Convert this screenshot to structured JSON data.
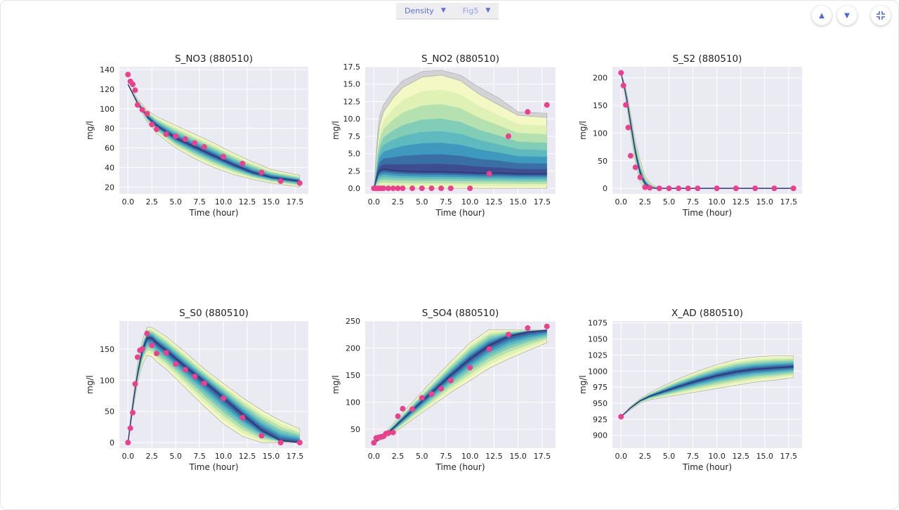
{
  "toolbar": {
    "dropdown1": "Density",
    "dropdown2": "Fig5",
    "icons": [
      "chevron-up-icon",
      "chevron-down-icon",
      "collapse-icon"
    ]
  },
  "colors": {
    "background": "#eaeaf2",
    "grid": "#ffffff",
    "observed": "#e8428f",
    "band_outer": "#f4f8c4",
    "band_mid": "#5fbac0",
    "band_inner": "#3d4d90",
    "envelope": "#a9a9a9",
    "accent": "#5b6ee1"
  },
  "chart_data": [
    {
      "type": "area",
      "title": "S_NO3 (880510)",
      "xlabel": "Time (hour)",
      "ylabel": "mg/l",
      "xlim": [
        -0.9,
        18.9
      ],
      "ylim": [
        13,
        143
      ],
      "xticks": [
        "0.0",
        "2.5",
        "5.0",
        "7.5",
        "10.0",
        "12.5",
        "15.0",
        "17.5"
      ],
      "yticks": [
        "20",
        "40",
        "60",
        "80",
        "100",
        "120",
        "140"
      ],
      "grid": true,
      "band": {
        "x": [
          0,
          1,
          2,
          3,
          5,
          7,
          9,
          11,
          13,
          15,
          18
        ],
        "lower": [
          125,
          104,
          87,
          75,
          60,
          49,
          40,
          33,
          28,
          24,
          20
        ],
        "upper": [
          125,
          110,
          99,
          92,
          83,
          74,
          65,
          55,
          46,
          38,
          32
        ],
        "mid": [
          125,
          106,
          92,
          83,
          70,
          61,
          52,
          43,
          35,
          30,
          26
        ]
      },
      "observed": {
        "x": [
          0,
          0.25,
          0.5,
          0.75,
          1,
          1.5,
          2,
          2.5,
          3,
          4,
          5,
          6,
          7,
          8,
          10,
          12,
          14,
          16,
          18
        ],
        "y": [
          135,
          128,
          125,
          119,
          104,
          99,
          95,
          84,
          79,
          74,
          72,
          69,
          65,
          61,
          51,
          44,
          35,
          26,
          24
        ]
      }
    },
    {
      "type": "area",
      "title": "S_NO2 (880510)",
      "xlabel": "Time (hour)",
      "ylabel": "mg/l",
      "xlim": [
        -0.9,
        18.9
      ],
      "ylim": [
        -0.8,
        17.5
      ],
      "xticks": [
        "0.0",
        "2.5",
        "5.0",
        "7.5",
        "10.0",
        "12.5",
        "15.0",
        "17.5"
      ],
      "yticks": [
        "0.0",
        "2.5",
        "5.0",
        "7.5",
        "10.0",
        "12.5",
        "15.0",
        "17.5"
      ],
      "grid": true,
      "band": {
        "x": [
          0,
          0.5,
          1,
          2,
          3,
          5,
          7,
          9,
          11,
          13,
          15,
          18
        ],
        "lower": [
          0,
          0,
          0,
          0,
          0,
          0,
          0,
          0,
          0,
          0,
          0,
          0
        ],
        "upper": [
          0,
          8.5,
          11,
          13,
          14.5,
          16,
          16.3,
          15.5,
          13.5,
          12,
          10.5,
          10.2
        ],
        "mid": [
          0,
          2.5,
          2.8,
          2.6,
          2.5,
          2.4,
          2.4,
          2.3,
          2.2,
          2.2,
          2.1,
          2.1
        ]
      },
      "envelope_upper": [
        0,
        10,
        12,
        14,
        15.5,
        16.8,
        17,
        16.3,
        14.5,
        13,
        11,
        10.8
      ],
      "observed": {
        "x": [
          0,
          0.25,
          0.5,
          0.75,
          1,
          1.5,
          2,
          2.5,
          3,
          4,
          5,
          6,
          7,
          8,
          10,
          12,
          14,
          16,
          18
        ],
        "y": [
          0,
          0,
          0,
          0,
          0,
          0,
          0,
          0,
          0,
          0,
          0,
          0,
          0,
          0,
          0,
          2.1,
          7.5,
          11,
          12
        ]
      }
    },
    {
      "type": "area",
      "title": "S_S2 (880510)",
      "xlabel": "Time (hour)",
      "ylabel": "mg/l",
      "xlim": [
        -0.9,
        18.9
      ],
      "ylim": [
        -10,
        220
      ],
      "xticks": [
        "0.0",
        "2.5",
        "5.0",
        "7.5",
        "10.0",
        "12.5",
        "15.0",
        "17.5"
      ],
      "yticks": [
        "0",
        "50",
        "100",
        "150",
        "200"
      ],
      "grid": true,
      "band": {
        "x": [
          0,
          0.5,
          1,
          1.5,
          2,
          2.5,
          3,
          3.5,
          4,
          4.5,
          18
        ],
        "lower": [
          208,
          160,
          100,
          45,
          12,
          0,
          0,
          0,
          0,
          0,
          0
        ],
        "upper": [
          208,
          182,
          135,
          85,
          50,
          22,
          10,
          4,
          1,
          0,
          0
        ],
        "mid": [
          208,
          172,
          118,
          65,
          28,
          8,
          2,
          0,
          0,
          0,
          0
        ]
      },
      "observed": {
        "x": [
          0,
          0.25,
          0.5,
          0.75,
          1,
          1.5,
          2,
          2.5,
          3,
          4,
          5,
          6,
          7,
          8,
          10,
          12,
          14,
          16,
          18
        ],
        "y": [
          209,
          186,
          151,
          110,
          59,
          38,
          20,
          2,
          1,
          0,
          0,
          0,
          0,
          0,
          0,
          0,
          0,
          0,
          0
        ]
      }
    },
    {
      "type": "area",
      "title": "S_S0 (880510)",
      "xlabel": "Time (hour)",
      "ylabel": "mg/l",
      "xlim": [
        -0.9,
        18.9
      ],
      "ylim": [
        -9,
        195
      ],
      "xticks": [
        "0.0",
        "2.5",
        "5.0",
        "7.5",
        "10.0",
        "12.5",
        "15.0",
        "17.5"
      ],
      "yticks": [
        "0",
        "50",
        "100",
        "150"
      ],
      "grid": true,
      "band": {
        "x": [
          0,
          0.5,
          1,
          1.5,
          2,
          2.5,
          3,
          4,
          6,
          8,
          10,
          12,
          14,
          16,
          18
        ],
        "lower": [
          0,
          50,
          95,
          125,
          140,
          138,
          130,
          118,
          88,
          58,
          30,
          10,
          0,
          0,
          0
        ],
        "upper": [
          0,
          70,
          125,
          165,
          185,
          185,
          180,
          170,
          145,
          118,
          95,
          72,
          52,
          35,
          22
        ],
        "mid": [
          0,
          60,
          110,
          148,
          168,
          168,
          160,
          148,
          122,
          98,
          72,
          45,
          20,
          3,
          0
        ]
      },
      "observed": {
        "x": [
          0,
          0.25,
          0.5,
          0.75,
          1,
          1.25,
          1.5,
          2,
          2.5,
          3,
          4,
          5,
          6,
          7,
          8,
          10,
          12,
          14,
          16,
          18
        ],
        "y": [
          0,
          23,
          48,
          94,
          137,
          148,
          150,
          175,
          156,
          143,
          144,
          126,
          117,
          106,
          95,
          71,
          40,
          11,
          0,
          0
        ]
      }
    },
    {
      "type": "area",
      "title": "S_SO4 (880510)",
      "xlabel": "Time (hour)",
      "ylabel": "mg/l",
      "xlim": [
        -0.9,
        18.9
      ],
      "ylim": [
        15,
        250
      ],
      "xticks": [
        "0.0",
        "2.5",
        "5.0",
        "7.5",
        "10.0",
        "12.5",
        "15.0",
        "17.5"
      ],
      "yticks": [
        "50",
        "100",
        "150",
        "200",
        "250"
      ],
      "grid": true,
      "band": {
        "x": [
          0,
          1,
          2,
          4,
          6,
          8,
          10,
          12,
          14,
          16,
          18
        ],
        "lower": [
          25,
          32,
          42,
          68,
          93,
          118,
          140,
          163,
          180,
          195,
          210
        ],
        "upper": [
          25,
          40,
          60,
          100,
          138,
          175,
          210,
          234,
          234,
          234,
          234
        ],
        "mid": [
          25,
          36,
          52,
          85,
          118,
          150,
          180,
          205,
          222,
          230,
          233
        ]
      },
      "observed": {
        "x": [
          0,
          0.25,
          0.5,
          0.75,
          1,
          1.25,
          1.5,
          2,
          2.5,
          3,
          4,
          5,
          6,
          7,
          8,
          10,
          12,
          14,
          16,
          18
        ],
        "y": [
          25,
          34,
          35,
          36,
          37,
          42,
          43,
          44,
          74,
          88,
          87,
          108,
          115,
          125,
          140,
          164,
          198,
          225,
          237,
          240
        ]
      }
    },
    {
      "type": "area",
      "title": "X_AD (880510)",
      "xlabel": "Time (hour)",
      "ylabel": "mg/l",
      "xlim": [
        -0.9,
        18.9
      ],
      "ylim": [
        880,
        1078
      ],
      "xticks": [
        "0.0",
        "2.5",
        "5.0",
        "7.5",
        "10.0",
        "12.5",
        "15.0",
        "17.5"
      ],
      "yticks": [
        "900",
        "925",
        "950",
        "975",
        "1000",
        "1025",
        "1050",
        "1075"
      ],
      "grid": true,
      "band": {
        "x": [
          0,
          1,
          2,
          3,
          4,
          6,
          8,
          10,
          12,
          14,
          16,
          18
        ],
        "lower": [
          929,
          940,
          950,
          955,
          958,
          963,
          968,
          973,
          978,
          983,
          986,
          990
        ],
        "upper": [
          929,
          945,
          957,
          966,
          974,
          988,
          1000,
          1010,
          1018,
          1022,
          1024,
          1024
        ],
        "mid": [
          929,
          943,
          954,
          961,
          966,
          976,
          985,
          993,
          999,
          1003,
          1005,
          1007
        ]
      },
      "observed": {
        "x": [
          0
        ],
        "y": [
          929
        ]
      }
    }
  ]
}
